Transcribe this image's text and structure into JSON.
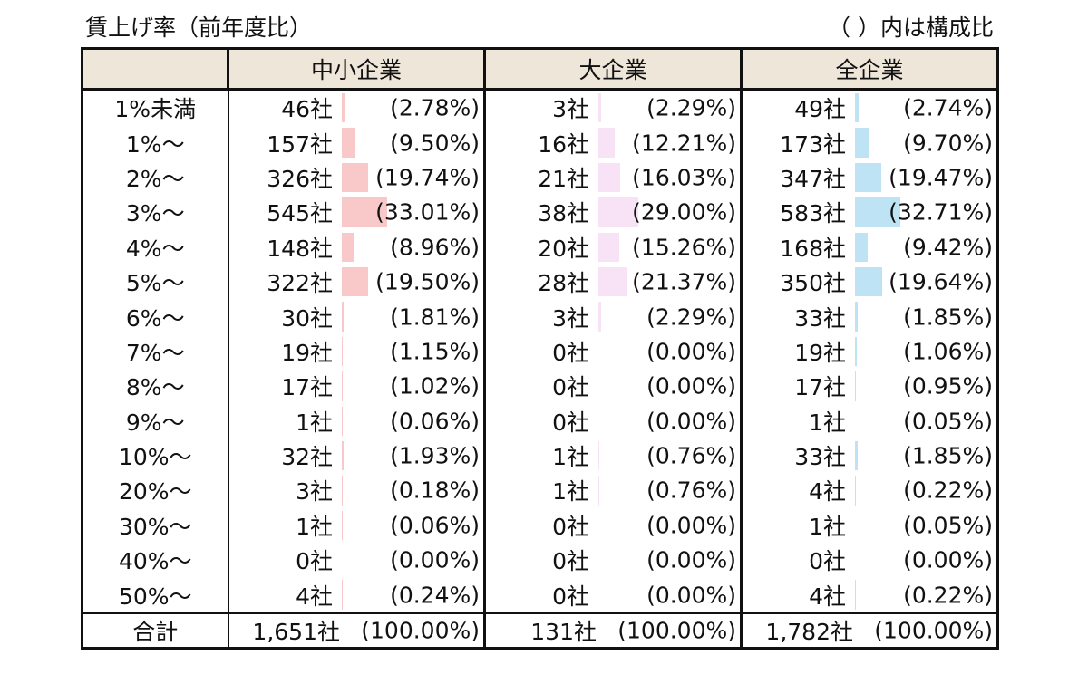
{
  "caption_left": "賃上げ率（前年度比）",
  "caption_right": "（ ）内は構成比",
  "colors": {
    "header_bg": "#efe6da",
    "bar_sme": "#f9c9c9",
    "bar_large": "#f8e3f6",
    "bar_all": "#bde3f4"
  },
  "chart_data": {
    "type": "table",
    "columns": [
      "中小企業",
      "大企業",
      "全企業"
    ],
    "rows": [
      {
        "label": "1%未満",
        "sme": {
          "count": "46社",
          "pct": "(2.78%)",
          "v": 2.78
        },
        "large": {
          "count": "3社",
          "pct": "(2.29%)",
          "v": 2.29
        },
        "all": {
          "count": "49社",
          "pct": "(2.74%)",
          "v": 2.74
        }
      },
      {
        "label": "1%～",
        "sme": {
          "count": "157社",
          "pct": "(9.50%)",
          "v": 9.5
        },
        "large": {
          "count": "16社",
          "pct": "(12.21%)",
          "v": 12.21
        },
        "all": {
          "count": "173社",
          "pct": "(9.70%)",
          "v": 9.7
        }
      },
      {
        "label": "2%～",
        "sme": {
          "count": "326社",
          "pct": "(19.74%)",
          "v": 19.74
        },
        "large": {
          "count": "21社",
          "pct": "(16.03%)",
          "v": 16.03
        },
        "all": {
          "count": "347社",
          "pct": "(19.47%)",
          "v": 19.47
        }
      },
      {
        "label": "3%～",
        "sme": {
          "count": "545社",
          "pct": "(33.01%)",
          "v": 33.01
        },
        "large": {
          "count": "38社",
          "pct": "(29.00%)",
          "v": 29.0
        },
        "all": {
          "count": "583社",
          "pct": "(32.71%)",
          "v": 32.71
        }
      },
      {
        "label": "4%～",
        "sme": {
          "count": "148社",
          "pct": "(8.96%)",
          "v": 8.96
        },
        "large": {
          "count": "20社",
          "pct": "(15.26%)",
          "v": 15.26
        },
        "all": {
          "count": "168社",
          "pct": "(9.42%)",
          "v": 9.42
        }
      },
      {
        "label": "5%～",
        "sme": {
          "count": "322社",
          "pct": "(19.50%)",
          "v": 19.5
        },
        "large": {
          "count": "28社",
          "pct": "(21.37%)",
          "v": 21.37
        },
        "all": {
          "count": "350社",
          "pct": "(19.64%)",
          "v": 19.64
        }
      },
      {
        "label": "6%～",
        "sme": {
          "count": "30社",
          "pct": "(1.81%)",
          "v": 1.81
        },
        "large": {
          "count": "3社",
          "pct": "(2.29%)",
          "v": 2.29
        },
        "all": {
          "count": "33社",
          "pct": "(1.85%)",
          "v": 1.85
        }
      },
      {
        "label": "7%～",
        "sme": {
          "count": "19社",
          "pct": "(1.15%)",
          "v": 1.15
        },
        "large": {
          "count": "0社",
          "pct": "(0.00%)",
          "v": 0
        },
        "all": {
          "count": "19社",
          "pct": "(1.06%)",
          "v": 1.06
        }
      },
      {
        "label": "8%～",
        "sme": {
          "count": "17社",
          "pct": "(1.02%)",
          "v": 1.02
        },
        "large": {
          "count": "0社",
          "pct": "(0.00%)",
          "v": 0
        },
        "all": {
          "count": "17社",
          "pct": "(0.95%)",
          "v": 0.95
        }
      },
      {
        "label": "9%～",
        "sme": {
          "count": "1社",
          "pct": "(0.06%)",
          "v": 0.06
        },
        "large": {
          "count": "0社",
          "pct": "(0.00%)",
          "v": 0
        },
        "all": {
          "count": "1社",
          "pct": "(0.05%)",
          "v": 0.05
        }
      },
      {
        "label": "10%～",
        "sme": {
          "count": "32社",
          "pct": "(1.93%)",
          "v": 1.93
        },
        "large": {
          "count": "1社",
          "pct": "(0.76%)",
          "v": 0.76
        },
        "all": {
          "count": "33社",
          "pct": "(1.85%)",
          "v": 1.85
        }
      },
      {
        "label": "20%～",
        "sme": {
          "count": "3社",
          "pct": "(0.18%)",
          "v": 0.18
        },
        "large": {
          "count": "1社",
          "pct": "(0.76%)",
          "v": 0.76
        },
        "all": {
          "count": "4社",
          "pct": "(0.22%)",
          "v": 0.22
        }
      },
      {
        "label": "30%～",
        "sme": {
          "count": "1社",
          "pct": "(0.06%)",
          "v": 0.06
        },
        "large": {
          "count": "0社",
          "pct": "(0.00%)",
          "v": 0
        },
        "all": {
          "count": "1社",
          "pct": "(0.05%)",
          "v": 0.05
        }
      },
      {
        "label": "40%～",
        "sme": {
          "count": "0社",
          "pct": "(0.00%)",
          "v": 0
        },
        "large": {
          "count": "0社",
          "pct": "(0.00%)",
          "v": 0
        },
        "all": {
          "count": "0社",
          "pct": "(0.00%)",
          "v": 0
        }
      },
      {
        "label": "50%～",
        "sme": {
          "count": "4社",
          "pct": "(0.24%)",
          "v": 0.24
        },
        "large": {
          "count": "0社",
          "pct": "(0.00%)",
          "v": 0
        },
        "all": {
          "count": "4社",
          "pct": "(0.22%)",
          "v": 0.22
        }
      }
    ],
    "total": {
      "label": "合計",
      "sme": {
        "count": "1,651社",
        "pct": "(100.00%)"
      },
      "large": {
        "count": "131社",
        "pct": "(100.00%)"
      },
      "all": {
        "count": "1,782社",
        "pct": "(100.00%)"
      }
    }
  }
}
